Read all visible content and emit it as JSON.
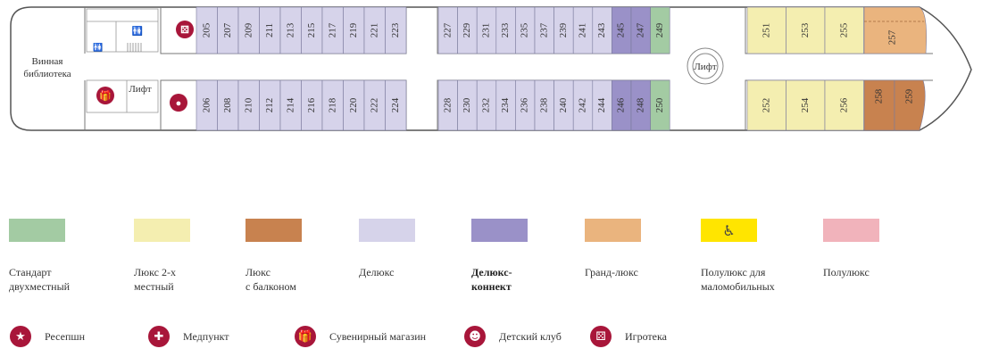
{
  "deck": {
    "wine_library": "Винная\nбиблиотека",
    "lift_label": "Лифт",
    "rooms_top_a": [
      "205",
      "207",
      "209",
      "211",
      "213",
      "215",
      "217",
      "219",
      "221",
      "223"
    ],
    "rooms_bottom_a": [
      "206",
      "208",
      "210",
      "212",
      "214",
      "216",
      "218",
      "220",
      "222",
      "224"
    ],
    "rooms_top_b": [
      "227",
      "229",
      "231",
      "233",
      "235",
      "237",
      "239",
      "241",
      "243",
      "245",
      "247",
      "249"
    ],
    "rooms_bottom_b": [
      "228",
      "230",
      "232",
      "234",
      "236",
      "238",
      "240",
      "242",
      "244",
      "246",
      "248",
      "250"
    ],
    "suites_top": [
      "251",
      "253",
      "255"
    ],
    "suites_bottom": [
      "252",
      "254",
      "256"
    ],
    "room_257": "257",
    "rooms_258_259": [
      "258",
      "259"
    ]
  },
  "colors": {
    "standard": "#a3cba3",
    "lux2": "#f4eeb0",
    "lux_balcony": "#c8824f",
    "deluxe": "#d6d3ea",
    "deluxe_connect": "#9a91c8",
    "grand_lux": "#eab47e",
    "mobility": "#ffe500",
    "semi_lux": "#f1b3bb",
    "amenity_red": "#a8163a"
  },
  "legend": [
    {
      "key": "standard",
      "label": "Стандарт\nдвухместный"
    },
    {
      "key": "lux2",
      "label": "Люкс 2-х\nместный"
    },
    {
      "key": "lux_balcony",
      "label": "Люкс\nс балконом"
    },
    {
      "key": "deluxe",
      "label": "Делюкс"
    },
    {
      "key": "deluxe_connect",
      "label": "Делюкс-\nконнект"
    },
    {
      "key": "grand_lux",
      "label": "Гранд-люкс"
    },
    {
      "key": "mobility",
      "label": "Полулюкс для\nмаломобильных",
      "icon": "wheelchair-icon"
    },
    {
      "key": "semi_lux",
      "label": "Полулюкс"
    }
  ],
  "amenities": [
    {
      "label": "Ресепшн",
      "icon": "star-icon"
    },
    {
      "label": "Медпункт",
      "icon": "medical-cross-icon"
    },
    {
      "label": "Сувенирный магазин",
      "icon": "gift-icon"
    },
    {
      "label": "Детский клуб",
      "icon": "teddy-bear-icon"
    },
    {
      "label": "Игротека",
      "icon": "dice-icon"
    }
  ]
}
